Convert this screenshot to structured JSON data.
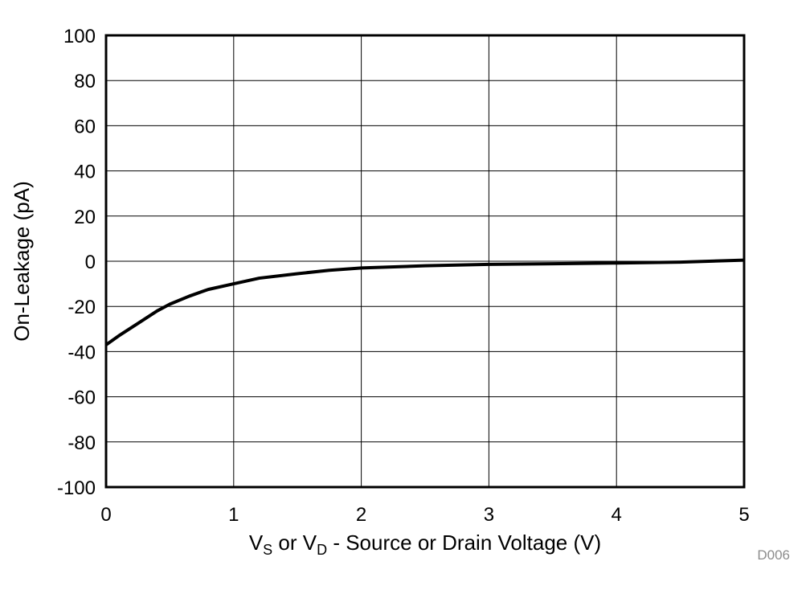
{
  "chart_data": {
    "type": "line",
    "title": "",
    "xlabel": "VS or VD - Source or Drain Voltage (V)",
    "xlabel_parts": {
      "v1": "V",
      "s1": "S",
      "mid": " or ",
      "v2": "V",
      "s2": "D",
      "rest": " - Source or Drain Voltage (V)"
    },
    "ylabel": "On-Leakage (pA)",
    "xlim": [
      0,
      5
    ],
    "ylim": [
      -100,
      100
    ],
    "x_ticks": [
      "0",
      "1",
      "2",
      "3",
      "4",
      "5"
    ],
    "y_ticks": [
      "100",
      "80",
      "60",
      "40",
      "20",
      "0",
      "-20",
      "-40",
      "-60",
      "-80",
      "-100"
    ],
    "grid": true,
    "legend": "none",
    "series": [
      {
        "name": "On-Leakage",
        "x": [
          0,
          0.1,
          0.25,
          0.4,
          0.5,
          0.65,
          0.8,
          1.0,
          1.2,
          1.5,
          1.75,
          2.0,
          2.5,
          3.0,
          3.5,
          4.0,
          4.5,
          5.0
        ],
        "y": [
          -37,
          -33,
          -27.5,
          -22,
          -19,
          -15.5,
          -12.5,
          -10,
          -7.5,
          -5.5,
          -4,
          -3,
          -2,
          -1.4,
          -1.1,
          -0.8,
          -0.4,
          0.5
        ]
      }
    ],
    "annotation": "D006"
  }
}
